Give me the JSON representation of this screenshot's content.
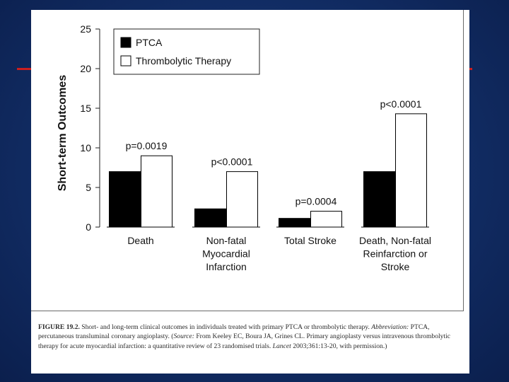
{
  "chart_data": {
    "type": "bar",
    "ylabel": "Short-term Outcomes",
    "ylim": [
      0,
      25
    ],
    "yticks": [
      "0",
      "5",
      "10",
      "15",
      "20",
      "25"
    ],
    "categories": [
      [
        "Death"
      ],
      [
        "Non-fatal",
        "Myocardial",
        "Infarction"
      ],
      [
        "Total Stroke"
      ],
      [
        "Death, Non-fatal",
        "Reinfarction or",
        "Stroke"
      ]
    ],
    "series": [
      {
        "name": "PTCA",
        "color": "#000000",
        "values": [
          7,
          2.3,
          1.1,
          7
        ]
      },
      {
        "name": "Thrombolytic Therapy",
        "color": "#ffffff",
        "values": [
          9,
          7,
          2,
          14.3
        ]
      }
    ],
    "annotations": [
      "p=0.0019",
      "p<0.0001",
      "p=0.0004",
      "p<0.0001"
    ],
    "legend_position": "top-left"
  },
  "caption": {
    "figure_label": "FIGURE 19.2.",
    "figure_text": " Short- and long-term clinical outcomes in individuals treated with primary PTCA or thrombolytic therapy.",
    "abbrev_label": "Abbreviation:",
    "abbrev_text": " PTCA, percutaneous transluminal coronary angioplasty. (",
    "source_label": "Source:",
    "source_text": " From Keeley EC, Boura JA, Grines CL. Primary angioplasty versus intravenous thrombolytic therapy for acute myocardial infarction: a quantitative review of 23 randomised trials. ",
    "journal": "Lancet",
    "citation": " 2003;361:13-20, with permission.)"
  }
}
